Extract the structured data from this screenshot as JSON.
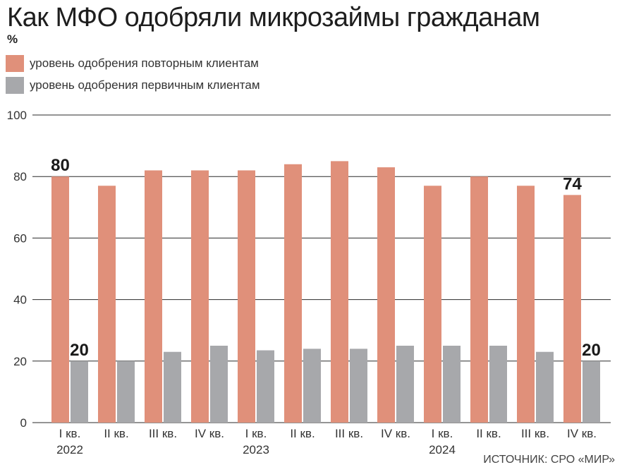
{
  "title": "Как МФО одобряли микрозаймы гражданам",
  "unit": "%",
  "source": "ИСТОЧНИК: СРО «МИР»",
  "colors": {
    "repeat": "#e0907a",
    "first": "#a7a8ab",
    "grid": "#2a2a2a"
  },
  "legend": [
    {
      "label": "уровень одобрения повторным клиентам",
      "color": "#e0907a"
    },
    {
      "label": "уровень одобрения первичным клиентам",
      "color": "#a7a8ab"
    }
  ],
  "chart_data": {
    "type": "bar",
    "title": "Как МФО одобряли микрозаймы гражданам",
    "ylabel": "%",
    "ylim": [
      0,
      100
    ],
    "yticks": [
      "0",
      "20",
      "40",
      "60",
      "80",
      "100"
    ],
    "grid": true,
    "legend_position": "top-left",
    "categories": [
      "I кв.",
      "II кв.",
      "III кв.",
      "IV кв.",
      "I кв.",
      "II кв.",
      "III кв.",
      "IV кв.",
      "I кв.",
      "II кв.",
      "III кв.",
      "IV кв."
    ],
    "years": [
      {
        "label": "2022",
        "start": 0,
        "end": 3
      },
      {
        "label": "2023",
        "start": 4,
        "end": 7
      },
      {
        "label": "2024",
        "start": 8,
        "end": 11
      }
    ],
    "series": [
      {
        "name": "уровень одобрения повторным клиентам",
        "values": [
          80,
          77,
          82,
          82,
          82,
          84,
          85,
          83,
          77,
          80,
          77,
          74
        ]
      },
      {
        "name": "уровень одобрения первичным клиентам",
        "values": [
          20,
          20,
          23,
          25,
          23.5,
          24,
          24,
          25,
          25,
          25,
          23,
          20
        ]
      }
    ],
    "data_labels": [
      {
        "series": 0,
        "index": 0,
        "text": "80"
      },
      {
        "series": 1,
        "index": 0,
        "text": "20"
      },
      {
        "series": 0,
        "index": 11,
        "text": "74"
      },
      {
        "series": 1,
        "index": 11,
        "text": "20"
      }
    ]
  }
}
